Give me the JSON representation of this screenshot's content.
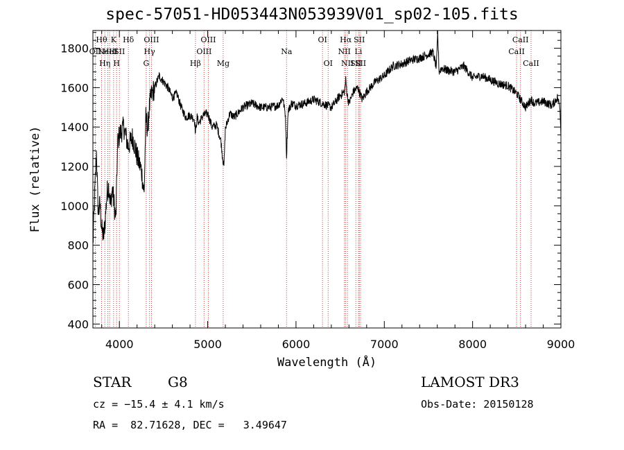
{
  "chart_data": {
    "type": "line",
    "title": "spec-57051-HD053443N053939V01_sp02-105.fits",
    "xlabel": "Wavelength (Å)",
    "ylabel": "Flux (relative)",
    "xlim": [
      3700,
      9000
    ],
    "ylim": [
      380,
      1890
    ],
    "x_ticks": [
      4000,
      5000,
      6000,
      7000,
      8000,
      9000
    ],
    "x_tick_labels": [
      "4000",
      "5000",
      "6000",
      "7000",
      "8000",
      "9000"
    ],
    "y_ticks": [
      400,
      600,
      800,
      1000,
      1200,
      1400,
      1600,
      1800
    ],
    "y_tick_labels": [
      "400",
      "600",
      "800",
      "1000",
      "1200",
      "1400",
      "1600",
      "1800"
    ],
    "series": [
      {
        "name": "spectrum",
        "x": [
          3700,
          3720,
          3740,
          3760,
          3780,
          3800,
          3820,
          3840,
          3860,
          3880,
          3900,
          3920,
          3940,
          3960,
          3980,
          4000,
          4050,
          4100,
          4150,
          4200,
          4250,
          4280,
          4300,
          4320,
          4340,
          4360,
          4400,
          4450,
          4500,
          4550,
          4600,
          4650,
          4700,
          4750,
          4800,
          4850,
          4861,
          4880,
          4900,
          4950,
          5000,
          5050,
          5100,
          5150,
          5167,
          5184,
          5200,
          5250,
          5300,
          5400,
          5500,
          5600,
          5700,
          5800,
          5850,
          5880,
          5893,
          5910,
          5950,
          6000,
          6100,
          6200,
          6300,
          6400,
          6500,
          6550,
          6563,
          6580,
          6600,
          6650,
          6700,
          6750,
          6800,
          6900,
          7000,
          7100,
          7200,
          7300,
          7400,
          7500,
          7550,
          7590,
          7605,
          7620,
          7650,
          7700,
          7800,
          7900,
          8000,
          8100,
          8200,
          8300,
          8400,
          8500,
          8542,
          8600,
          8662,
          8700,
          8800,
          8900,
          8960,
          8990,
          9000
        ],
        "values": [
          800,
          1050,
          1270,
          960,
          1010,
          880,
          840,
          930,
          1070,
          1100,
          1000,
          1090,
          1010,
          930,
          1320,
          1360,
          1400,
          1300,
          1350,
          1250,
          1180,
          1060,
          1450,
          1390,
          1500,
          1560,
          1600,
          1660,
          1630,
          1600,
          1550,
          1570,
          1500,
          1450,
          1460,
          1440,
          1370,
          1450,
          1420,
          1460,
          1470,
          1400,
          1410,
          1330,
          1250,
          1200,
          1390,
          1470,
          1450,
          1500,
          1520,
          1500,
          1500,
          1510,
          1550,
          1460,
          1250,
          1480,
          1520,
          1510,
          1520,
          1540,
          1520,
          1500,
          1560,
          1580,
          1640,
          1560,
          1520,
          1580,
          1600,
          1540,
          1580,
          1630,
          1660,
          1710,
          1720,
          1740,
          1750,
          1770,
          1780,
          1700,
          1880,
          1680,
          1700,
          1690,
          1680,
          1710,
          1650,
          1660,
          1640,
          1620,
          1610,
          1570,
          1540,
          1500,
          1540,
          1520,
          1530,
          1510,
          1550,
          1500,
          1350
        ]
      }
    ],
    "lines": [
      {
        "w": 3727,
        "label": "OII",
        "row": 1
      },
      {
        "w": 3798,
        "label": "Hθ",
        "row": 0
      },
      {
        "w": 3835,
        "label": "Hη",
        "row": 2
      },
      {
        "w": 3869,
        "label": "NeIII",
        "row": 1
      },
      {
        "w": 3889,
        "label": "HeI",
        "row": 1
      },
      {
        "w": 3934,
        "label": "K",
        "row": 0
      },
      {
        "w": 3968,
        "label": "H",
        "row": 2
      },
      {
        "w": 4000,
        "label": "SII",
        "row": 1
      },
      {
        "w": 4102,
        "label": "Hδ",
        "row": 0
      },
      {
        "w": 4304,
        "label": "G",
        "row": 2
      },
      {
        "w": 4341,
        "label": "Hγ",
        "row": 1
      },
      {
        "w": 4363,
        "label": "OIII",
        "row": 0
      },
      {
        "w": 4861,
        "label": "Hβ",
        "row": 2
      },
      {
        "w": 4959,
        "label": "OIII",
        "row": 1
      },
      {
        "w": 5007,
        "label": "OIII",
        "row": 0
      },
      {
        "w": 5175,
        "label": "Mg",
        "row": 2
      },
      {
        "w": 5893,
        "label": "Na",
        "row": 1
      },
      {
        "w": 6300,
        "label": "OI",
        "row": 0
      },
      {
        "w": 6364,
        "label": "OI",
        "row": 2
      },
      {
        "w": 6548,
        "label": "NII",
        "row": 1
      },
      {
        "w": 6563,
        "label": "Hα",
        "row": 0
      },
      {
        "w": 6583,
        "label": "NII",
        "row": 2
      },
      {
        "w": 6678,
        "label": "SII",
        "row": 2
      },
      {
        "w": 6707,
        "label": "Li",
        "row": 1
      },
      {
        "w": 6717,
        "label": "SII",
        "row": 0
      },
      {
        "w": 6731,
        "label": "SII",
        "row": 2
      },
      {
        "w": 8498,
        "label": "CaII",
        "row": 1
      },
      {
        "w": 8542,
        "label": "CaII",
        "row": 0
      },
      {
        "w": 8662,
        "label": "CaII",
        "row": 2
      }
    ]
  },
  "info": {
    "object_class": "STAR",
    "subclass": "G8",
    "survey": "LAMOST DR3",
    "redshift": "cz = −15.4 ± 4.1 km/s",
    "obs_date": "Obs-Date: 20150128",
    "coords": "RA =  82.71628, DEC =   3.49647"
  }
}
